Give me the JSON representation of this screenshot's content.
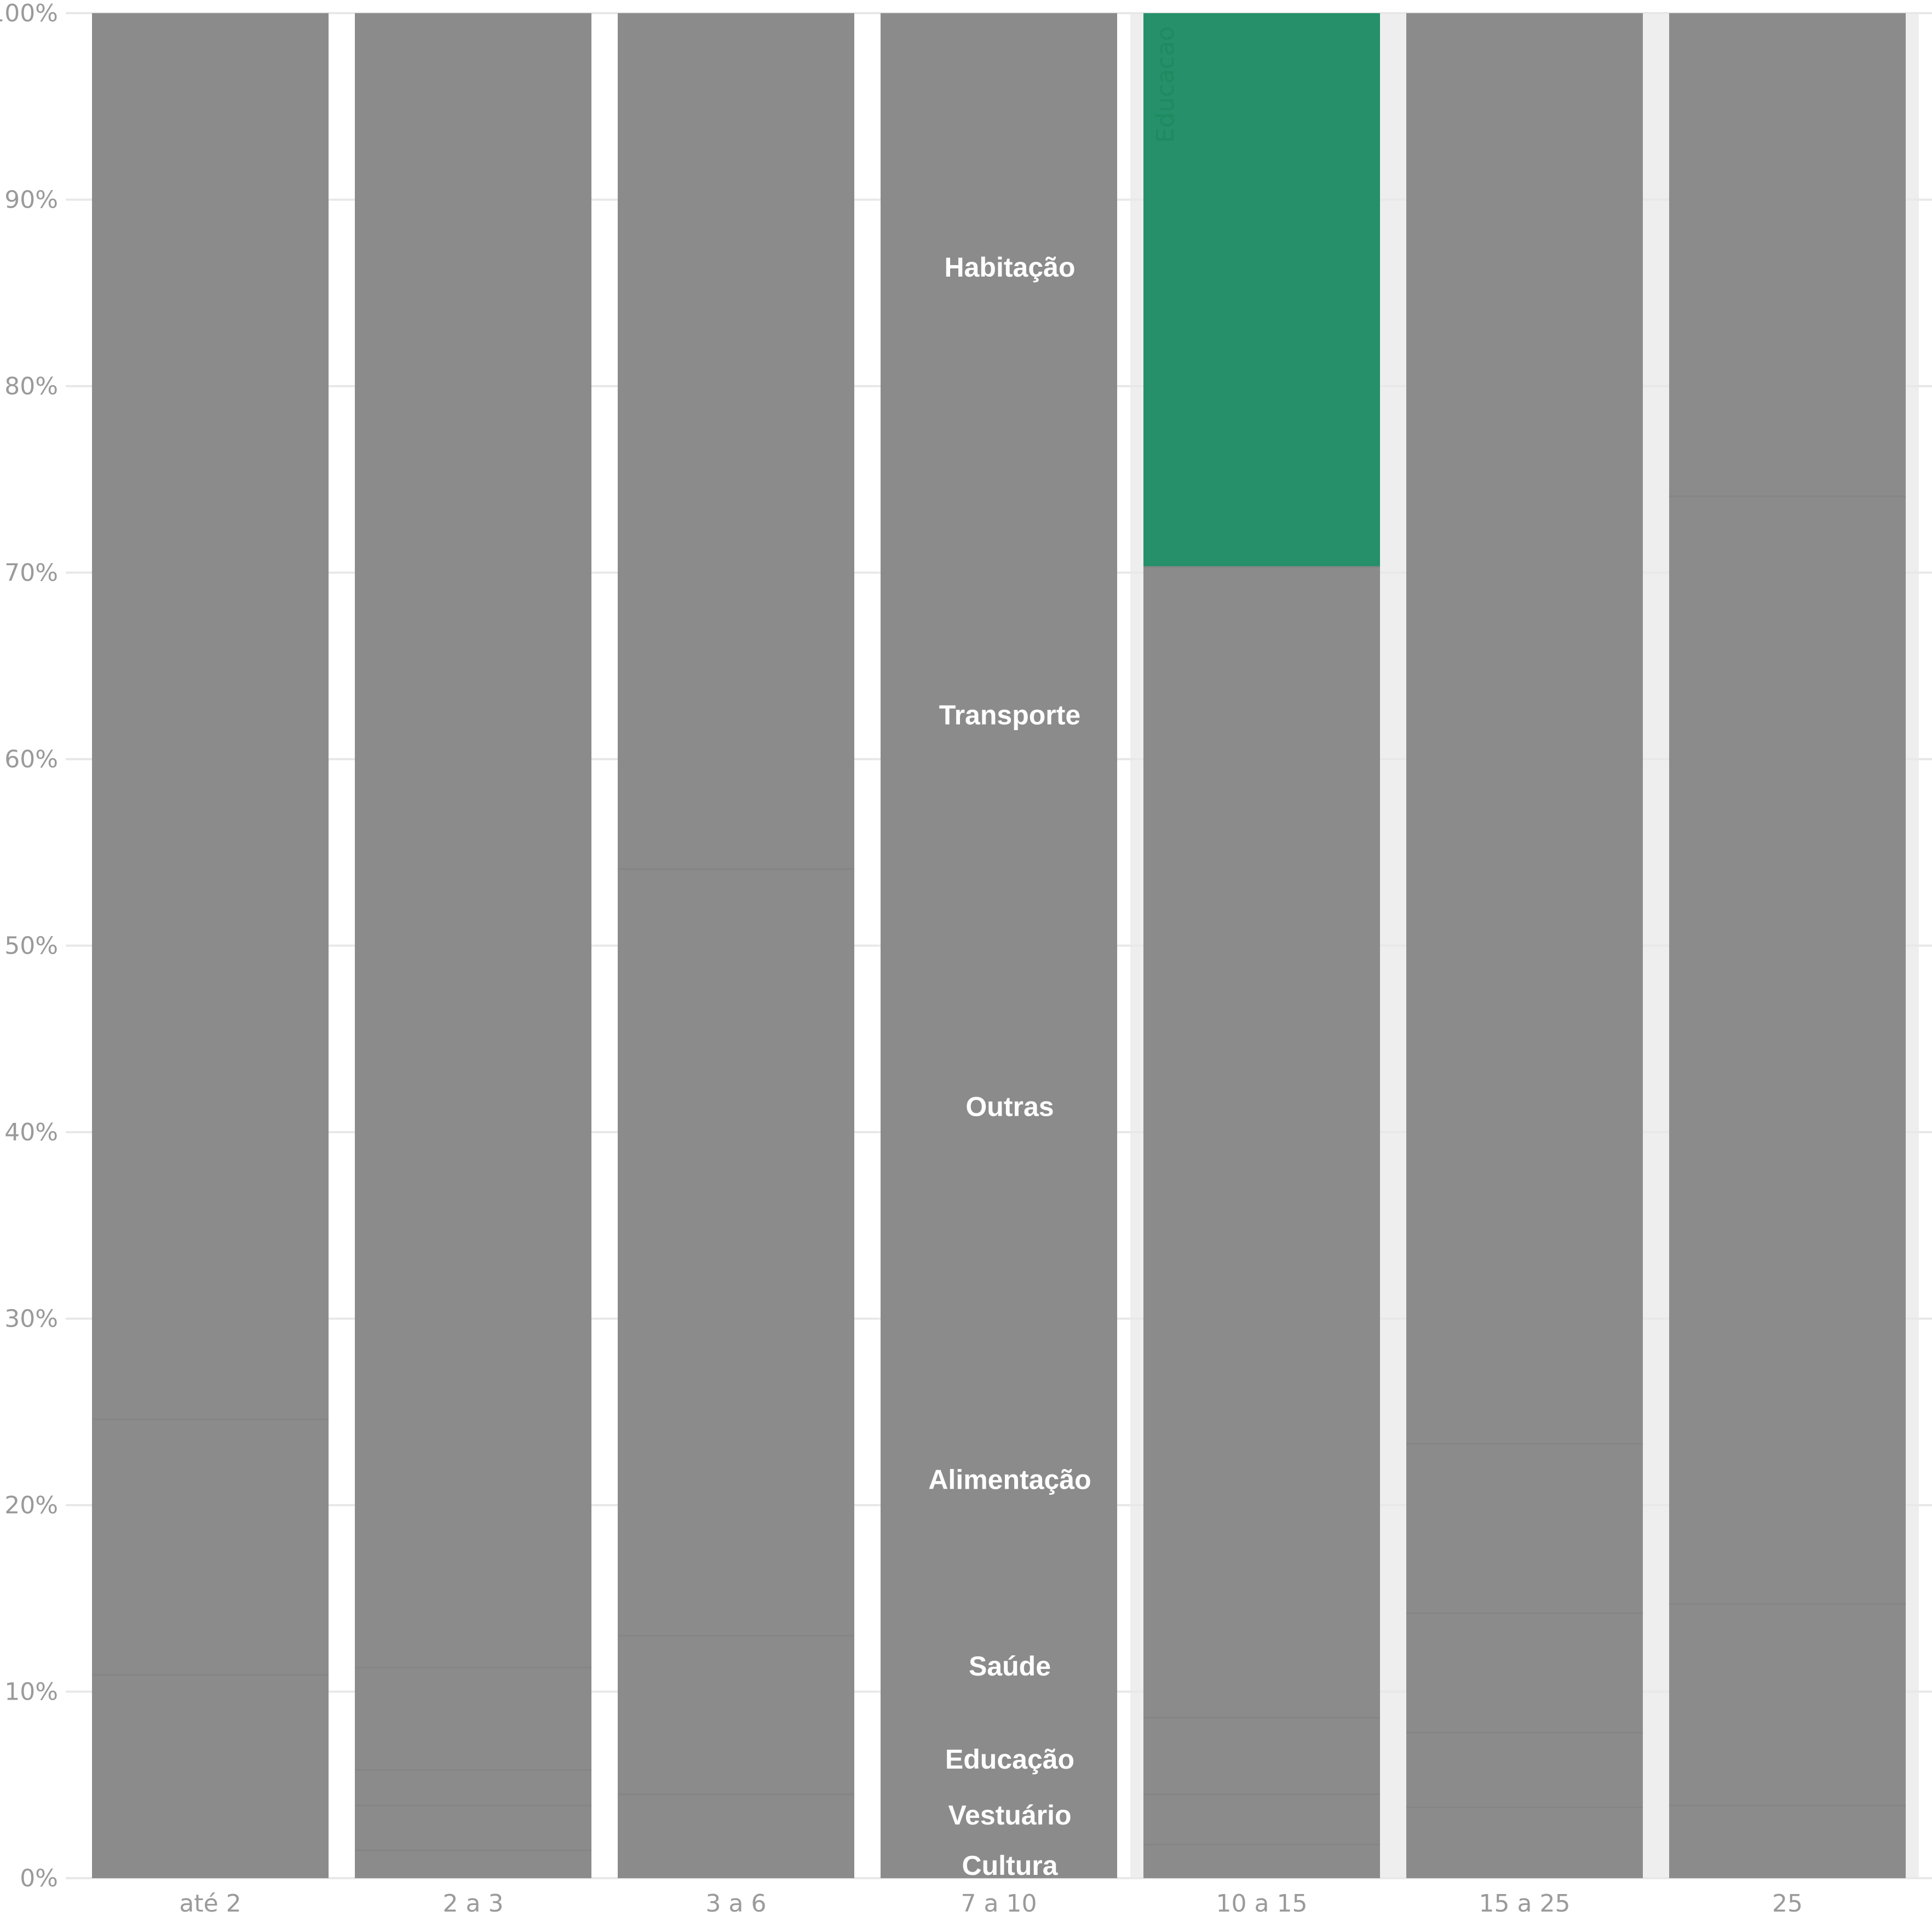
{
  "chart_data": {
    "type": "bar",
    "stacked": true,
    "percent": true,
    "categories": [
      "até 2",
      "2 a 3",
      "3 a 6",
      "7 a 10",
      "10 a 15",
      "15 a 25",
      "25"
    ],
    "yticks": [
      "0%",
      "10%",
      "20%",
      "30%",
      "40%",
      "50%",
      "60%",
      "70%",
      "80%",
      "90%",
      "100%"
    ],
    "ylim": [
      0,
      100
    ],
    "grid": true,
    "highlight": {
      "category_index": 4,
      "from": 70.3,
      "to": 100,
      "color": "#25906A",
      "label": "Educacao"
    },
    "highlight_background_categories": [
      4,
      5,
      6
    ],
    "segment_boundaries": [
      [
        10.9,
        24.6
      ],
      [
        1.5,
        3.9,
        5.8,
        11.3
      ],
      [
        4.5,
        13.0,
        54.1
      ],
      [],
      [
        1.8,
        4.5,
        8.6,
        70.3
      ],
      [
        3.8,
        7.8,
        14.2,
        23.3
      ],
      [
        3.9,
        14.7,
        74.1
      ]
    ],
    "category_labels": [
      {
        "text": "Habitação",
        "y": 86.4
      },
      {
        "text": "Transporte",
        "y": 62.4
      },
      {
        "text": "Outras",
        "y": 41.4
      },
      {
        "text": "Alimentação",
        "y": 21.4
      },
      {
        "text": "Saúde",
        "y": 11.4
      },
      {
        "text": "Educação",
        "y": 6.4
      },
      {
        "text": "Vestuário",
        "y": 3.4
      },
      {
        "text": "Cultura",
        "y": 0.7
      }
    ],
    "colors": {
      "bar": "#8B8B8B",
      "grid": "#E8E8E8",
      "highlight_band": "#EEEEEE",
      "tick": "#9A9A9A",
      "label": "#FFFFFF"
    }
  }
}
